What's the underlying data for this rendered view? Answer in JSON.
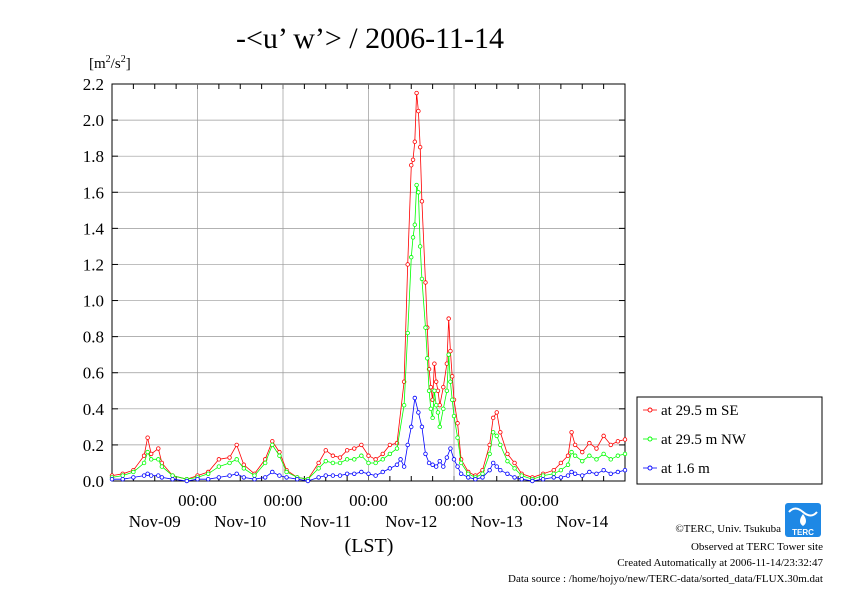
{
  "title": "-<u’ w’> / 2006-11-14",
  "ylabel_base": "[m",
  "ylabel_sup1": "2",
  "ylabel_mid": "/s",
  "ylabel_sup2": "2",
  "ylabel_end": "]",
  "xaxis_caption": "(LST)",
  "credit": "©TERC, Univ. Tsukuba",
  "observed": "Observed at TERC Tower site",
  "created": "Created Automatically at 2006-11-14/23:32:47",
  "source": "Data source : /home/hojyo/new/TERC-data/sorted_data/FLUX.30m.dat",
  "logo_text": "TERC",
  "colors": {
    "se": "#ff0000",
    "nw": "#00ff00",
    "low": "#0000ff"
  },
  "chart_data": {
    "type": "line",
    "title": "-<u’ w’> / 2006-11-14",
    "ylabel": "[m2/s2]",
    "xlabel": "(LST)",
    "ylim": [
      0,
      2.2
    ],
    "xlim_hours": [
      0,
      144
    ],
    "y_ticks": [
      "0.0",
      "0.2",
      "0.4",
      "0.6",
      "0.8",
      "1.0",
      "1.2",
      "1.4",
      "1.6",
      "1.8",
      "2.0",
      "2.2"
    ],
    "x_ticks": [
      {
        "hour": 24,
        "time": "00:00"
      },
      {
        "hour": 48,
        "time": "00:00"
      },
      {
        "hour": 72,
        "time": "00:00"
      },
      {
        "hour": 96,
        "time": "00:00"
      },
      {
        "hour": 120,
        "time": "00:00"
      }
    ],
    "day_labels": [
      {
        "hour": 12,
        "label": "Nov-09"
      },
      {
        "hour": 36,
        "label": "Nov-10"
      },
      {
        "hour": 60,
        "label": "Nov-11"
      },
      {
        "hour": 84,
        "label": "Nov-12"
      },
      {
        "hour": 108,
        "label": "Nov-13"
      },
      {
        "hour": 132,
        "label": "Nov-14"
      }
    ],
    "grid": true,
    "legend_position": "right",
    "series": [
      {
        "name": "at 29.5 m SE",
        "color": "#ff0000",
        "points": [
          [
            0,
            0.03
          ],
          [
            3,
            0.04
          ],
          [
            6,
            0.06
          ],
          [
            9,
            0.14
          ],
          [
            10,
            0.24
          ],
          [
            11,
            0.15
          ],
          [
            13,
            0.18
          ],
          [
            14,
            0.1
          ],
          [
            17,
            0.03
          ],
          [
            21,
            0.01
          ],
          [
            24,
            0.03
          ],
          [
            27,
            0.05
          ],
          [
            30,
            0.12
          ],
          [
            33,
            0.13
          ],
          [
            35,
            0.2
          ],
          [
            37,
            0.09
          ],
          [
            40,
            0.04
          ],
          [
            43,
            0.12
          ],
          [
            45,
            0.22
          ],
          [
            47,
            0.16
          ],
          [
            49,
            0.06
          ],
          [
            52,
            0.02
          ],
          [
            55,
            0.01
          ],
          [
            58,
            0.1
          ],
          [
            60,
            0.17
          ],
          [
            62,
            0.14
          ],
          [
            64,
            0.13
          ],
          [
            66,
            0.17
          ],
          [
            68,
            0.18
          ],
          [
            70,
            0.2
          ],
          [
            72,
            0.14
          ],
          [
            74,
            0.12
          ],
          [
            76,
            0.15
          ],
          [
            78,
            0.2
          ],
          [
            80,
            0.21
          ],
          [
            82,
            0.55
          ],
          [
            83,
            1.2
          ],
          [
            84,
            1.75
          ],
          [
            84.5,
            1.78
          ],
          [
            85,
            1.88
          ],
          [
            85.5,
            2.15
          ],
          [
            86,
            2.05
          ],
          [
            86.5,
            1.85
          ],
          [
            87,
            1.55
          ],
          [
            88,
            1.1
          ],
          [
            88.5,
            0.85
          ],
          [
            89,
            0.62
          ],
          [
            89.5,
            0.52
          ],
          [
            90,
            0.45
          ],
          [
            90.5,
            0.65
          ],
          [
            91,
            0.55
          ],
          [
            91.5,
            0.5
          ],
          [
            92,
            0.42
          ],
          [
            93,
            0.52
          ],
          [
            94,
            0.65
          ],
          [
            94.5,
            0.9
          ],
          [
            95,
            0.72
          ],
          [
            95.5,
            0.58
          ],
          [
            96,
            0.45
          ],
          [
            97,
            0.32
          ],
          [
            98,
            0.12
          ],
          [
            100,
            0.05
          ],
          [
            102,
            0.03
          ],
          [
            104,
            0.06
          ],
          [
            106,
            0.2
          ],
          [
            107,
            0.35
          ],
          [
            108,
            0.38
          ],
          [
            109,
            0.27
          ],
          [
            111,
            0.15
          ],
          [
            113,
            0.1
          ],
          [
            115,
            0.04
          ],
          [
            118,
            0.02
          ],
          [
            121,
            0.04
          ],
          [
            124,
            0.06
          ],
          [
            126,
            0.1
          ],
          [
            128,
            0.14
          ],
          [
            129,
            0.27
          ],
          [
            130,
            0.2
          ],
          [
            132,
            0.16
          ],
          [
            134,
            0.21
          ],
          [
            136,
            0.18
          ],
          [
            138,
            0.25
          ],
          [
            140,
            0.2
          ],
          [
            142,
            0.22
          ],
          [
            144,
            0.23
          ]
        ]
      },
      {
        "name": "at 29.5 m NW",
        "color": "#00ff00",
        "points": [
          [
            0,
            0.02
          ],
          [
            3,
            0.03
          ],
          [
            6,
            0.05
          ],
          [
            9,
            0.1
          ],
          [
            10,
            0.16
          ],
          [
            11,
            0.12
          ],
          [
            13,
            0.12
          ],
          [
            14,
            0.08
          ],
          [
            17,
            0.03
          ],
          [
            21,
            0.01
          ],
          [
            24,
            0.02
          ],
          [
            27,
            0.04
          ],
          [
            30,
            0.08
          ],
          [
            33,
            0.1
          ],
          [
            35,
            0.12
          ],
          [
            37,
            0.07
          ],
          [
            40,
            0.03
          ],
          [
            43,
            0.1
          ],
          [
            45,
            0.2
          ],
          [
            47,
            0.14
          ],
          [
            49,
            0.05
          ],
          [
            52,
            0.02
          ],
          [
            55,
            0.01
          ],
          [
            58,
            0.07
          ],
          [
            60,
            0.11
          ],
          [
            62,
            0.1
          ],
          [
            64,
            0.1
          ],
          [
            66,
            0.12
          ],
          [
            68,
            0.12
          ],
          [
            70,
            0.14
          ],
          [
            72,
            0.1
          ],
          [
            74,
            0.1
          ],
          [
            76,
            0.12
          ],
          [
            78,
            0.15
          ],
          [
            80,
            0.18
          ],
          [
            82,
            0.42
          ],
          [
            83,
            0.82
          ],
          [
            84,
            1.24
          ],
          [
            84.5,
            1.35
          ],
          [
            85,
            1.42
          ],
          [
            85.5,
            1.64
          ],
          [
            86,
            1.6
          ],
          [
            86.5,
            1.3
          ],
          [
            87,
            1.12
          ],
          [
            88,
            0.85
          ],
          [
            88.5,
            0.68
          ],
          [
            89,
            0.5
          ],
          [
            89.5,
            0.4
          ],
          [
            90,
            0.35
          ],
          [
            90.5,
            0.5
          ],
          [
            91,
            0.42
          ],
          [
            91.5,
            0.38
          ],
          [
            92,
            0.3
          ],
          [
            93,
            0.4
          ],
          [
            94,
            0.5
          ],
          [
            94.5,
            0.7
          ],
          [
            95,
            0.55
          ],
          [
            95.5,
            0.45
          ],
          [
            96,
            0.36
          ],
          [
            97,
            0.24
          ],
          [
            98,
            0.1
          ],
          [
            100,
            0.04
          ],
          [
            102,
            0.02
          ],
          [
            104,
            0.04
          ],
          [
            106,
            0.15
          ],
          [
            107,
            0.27
          ],
          [
            108,
            0.25
          ],
          [
            109,
            0.2
          ],
          [
            111,
            0.11
          ],
          [
            113,
            0.07
          ],
          [
            115,
            0.03
          ],
          [
            118,
            0.01
          ],
          [
            121,
            0.03
          ],
          [
            124,
            0.04
          ],
          [
            126,
            0.06
          ],
          [
            128,
            0.09
          ],
          [
            129,
            0.16
          ],
          [
            130,
            0.14
          ],
          [
            132,
            0.11
          ],
          [
            134,
            0.14
          ],
          [
            136,
            0.12
          ],
          [
            138,
            0.15
          ],
          [
            140,
            0.12
          ],
          [
            142,
            0.14
          ],
          [
            144,
            0.15
          ]
        ]
      },
      {
        "name": "at 1.6 m",
        "color": "#0000ff",
        "points": [
          [
            0,
            0.01
          ],
          [
            3,
            0.01
          ],
          [
            6,
            0.02
          ],
          [
            9,
            0.03
          ],
          [
            10,
            0.04
          ],
          [
            11,
            0.03
          ],
          [
            13,
            0.03
          ],
          [
            14,
            0.02
          ],
          [
            17,
            0.01
          ],
          [
            21,
            0.0
          ],
          [
            24,
            0.01
          ],
          [
            27,
            0.01
          ],
          [
            30,
            0.02
          ],
          [
            33,
            0.03
          ],
          [
            35,
            0.04
          ],
          [
            37,
            0.02
          ],
          [
            40,
            0.01
          ],
          [
            43,
            0.02
          ],
          [
            45,
            0.05
          ],
          [
            47,
            0.03
          ],
          [
            49,
            0.02
          ],
          [
            52,
            0.01
          ],
          [
            55,
            0.0
          ],
          [
            58,
            0.02
          ],
          [
            60,
            0.03
          ],
          [
            62,
            0.03
          ],
          [
            64,
            0.03
          ],
          [
            66,
            0.04
          ],
          [
            68,
            0.04
          ],
          [
            70,
            0.05
          ],
          [
            72,
            0.04
          ],
          [
            74,
            0.03
          ],
          [
            76,
            0.05
          ],
          [
            78,
            0.07
          ],
          [
            80,
            0.09
          ],
          [
            81,
            0.12
          ],
          [
            82,
            0.08
          ],
          [
            83,
            0.2
          ],
          [
            84,
            0.3
          ],
          [
            85,
            0.46
          ],
          [
            86,
            0.38
          ],
          [
            87,
            0.3
          ],
          [
            88,
            0.15
          ],
          [
            89,
            0.1
          ],
          [
            90,
            0.09
          ],
          [
            91,
            0.08
          ],
          [
            92,
            0.11
          ],
          [
            93,
            0.08
          ],
          [
            94,
            0.13
          ],
          [
            95,
            0.18
          ],
          [
            96,
            0.12
          ],
          [
            97,
            0.08
          ],
          [
            98,
            0.04
          ],
          [
            100,
            0.02
          ],
          [
            102,
            0.01
          ],
          [
            104,
            0.02
          ],
          [
            106,
            0.06
          ],
          [
            107,
            0.1
          ],
          [
            108,
            0.08
          ],
          [
            109,
            0.06
          ],
          [
            111,
            0.04
          ],
          [
            113,
            0.02
          ],
          [
            115,
            0.01
          ],
          [
            118,
            0.0
          ],
          [
            121,
            0.01
          ],
          [
            124,
            0.02
          ],
          [
            126,
            0.02
          ],
          [
            128,
            0.03
          ],
          [
            129,
            0.05
          ],
          [
            130,
            0.04
          ],
          [
            132,
            0.03
          ],
          [
            134,
            0.05
          ],
          [
            136,
            0.04
          ],
          [
            138,
            0.06
          ],
          [
            140,
            0.04
          ],
          [
            142,
            0.05
          ],
          [
            144,
            0.06
          ]
        ]
      }
    ]
  }
}
